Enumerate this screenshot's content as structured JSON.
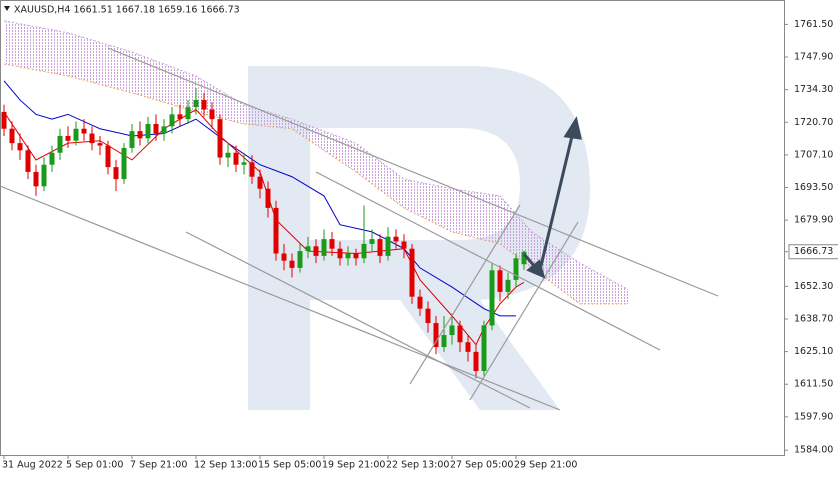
{
  "chart_data": {
    "type": "candlestick",
    "title": "XAUUSD,H4  1661.51 1667.18 1659.16 1666.73",
    "categories": [
      "31 Aug 2022",
      null,
      null,
      null,
      null,
      null,
      null,
      null,
      "5 Sep 01:00",
      null,
      null,
      null,
      null,
      null,
      null,
      null,
      "7 Sep 21:00",
      null,
      null,
      null,
      null,
      null,
      null,
      null,
      "12 Sep 13:00",
      null,
      null,
      null,
      null,
      null,
      null,
      null,
      "15 Sep 05:00",
      null,
      null,
      null,
      null,
      null,
      null,
      null,
      "19 Sep 21:00",
      null,
      null,
      null,
      null,
      null,
      null,
      null,
      "22 Sep 13:00",
      null,
      null,
      null,
      null,
      null,
      null,
      null,
      "27 Sep 05:00",
      null,
      null,
      null,
      null,
      null,
      null,
      null,
      "29 Sep 21:00",
      null
    ],
    "open": [
      1725,
      1718,
      1712,
      1709,
      1700,
      1694,
      1703,
      1708,
      1715,
      1713,
      1718,
      1716,
      1712,
      1711,
      1702,
      1697,
      1710,
      1717,
      1714,
      1720,
      1716,
      1719,
      1724,
      1722,
      1727,
      1730,
      1726,
      1722,
      1706,
      1708,
      1703,
      1704,
      1698,
      1693,
      1685,
      1666,
      1663,
      1660,
      1667,
      1669,
      1665,
      1672,
      1668,
      1664,
      1666,
      1664,
      1670,
      1672,
      1665,
      1673,
      1671,
      1668,
      1648,
      1643,
      1637,
      1627,
      1632,
      1636,
      1629,
      1625,
      1617,
      1636,
      1659,
      1650,
      1655,
      1661.51
    ],
    "high": [
      1728,
      1721,
      1716,
      1711,
      1703,
      1706,
      1711,
      1718,
      1719,
      1721,
      1722,
      1719,
      1715,
      1713,
      1705,
      1712,
      1720,
      1721,
      1723,
      1724,
      1722,
      1727,
      1728,
      1730,
      1735,
      1733,
      1729,
      1724,
      1712,
      1711,
      1708,
      1707,
      1701,
      1696,
      1688,
      1670,
      1666,
      1670,
      1673,
      1672,
      1676,
      1675,
      1671,
      1669,
      1668,
      1686,
      1676,
      1674,
      1677,
      1676,
      1674,
      1670,
      1651,
      1646,
      1640,
      1640,
      1641,
      1638,
      1632,
      1628,
      1638,
      1662,
      1661,
      1658,
      1666,
      1667.18
    ],
    "low": [
      1715,
      1709,
      1705,
      1697,
      1690,
      1692,
      1700,
      1705,
      1710,
      1711,
      1713,
      1709,
      1707,
      1699,
      1692,
      1695,
      1708,
      1711,
      1712,
      1713,
      1713,
      1716,
      1719,
      1720,
      1724,
      1723,
      1718,
      1703,
      1702,
      1700,
      1699,
      1695,
      1689,
      1681,
      1663,
      1659,
      1656,
      1658,
      1664,
      1662,
      1663,
      1665,
      1661,
      1661,
      1661,
      1662,
      1667,
      1662,
      1663,
      1668,
      1664,
      1645,
      1640,
      1633,
      1624,
      1625,
      1628,
      1625,
      1621,
      1614,
      1615,
      1634,
      1646,
      1647,
      1652,
      1659.16
    ],
    "close": [
      1718,
      1712,
      1709,
      1700,
      1694,
      1703,
      1708,
      1715,
      1713,
      1718,
      1716,
      1712,
      1711,
      1702,
      1697,
      1710,
      1717,
      1714,
      1720,
      1716,
      1719,
      1724,
      1722,
      1727,
      1730,
      1726,
      1722,
      1706,
      1708,
      1703,
      1704,
      1698,
      1693,
      1685,
      1666,
      1663,
      1660,
      1667,
      1669,
      1665,
      1672,
      1668,
      1664,
      1666,
      1664,
      1670,
      1672,
      1665,
      1673,
      1671,
      1668,
      1648,
      1643,
      1637,
      1627,
      1632,
      1636,
      1629,
      1625,
      1617,
      1636,
      1659,
      1650,
      1655,
      1664,
      1666.73
    ],
    "up_color": "#1a9a1a",
    "down_color": "#e00000",
    "lines": [
      {
        "color": "#0000cc",
        "x": [
          0,
          2,
          4,
          6,
          8,
          12,
          16,
          20,
          24,
          28,
          32,
          36,
          40,
          42,
          46,
          50,
          52,
          56,
          60,
          62,
          64
        ],
        "values": [
          1738,
          1730,
          1724,
          1722,
          1724,
          1718,
          1715,
          1716,
          1722,
          1712,
          1703,
          1698,
          1690,
          1678,
          1675,
          1668,
          1660,
          1652,
          1643,
          1640,
          1640
        ]
      },
      {
        "color": "#dd0000",
        "x": [
          0,
          4,
          8,
          12,
          16,
          20,
          24,
          27,
          32,
          34,
          38,
          44,
          50,
          52,
          56,
          59,
          60,
          62,
          64,
          65
        ],
        "values": [
          1725,
          1705,
          1712,
          1713,
          1705,
          1718,
          1726,
          1715,
          1700,
          1680,
          1667,
          1666,
          1668,
          1655,
          1640,
          1628,
          1635,
          1645,
          1652,
          1654
        ]
      }
    ],
    "cloud": {
      "color": "#c9a0dc",
      "x": [
        0,
        8,
        16,
        24,
        30,
        36,
        44,
        50,
        56,
        62,
        66,
        72,
        78
      ],
      "upper": [
        1763,
        1758,
        1750,
        1740,
        1728,
        1722,
        1712,
        1697,
        1693,
        1690,
        1675,
        1662,
        1651
      ],
      "lower": [
        1745,
        1740,
        1733,
        1725,
        1720,
        1718,
        1700,
        1685,
        1675,
        1670,
        1660,
        1645,
        1645
      ]
    },
    "ylim": [
      1582,
      1770
    ],
    "yticks": [
      {
        "value": 1584,
        "label": "1584.00"
      },
      {
        "value": 1597.9,
        "label": "1597.90"
      },
      {
        "value": 1611.5,
        "label": "1611.50"
      },
      {
        "value": 1625.1,
        "label": "1625.10"
      },
      {
        "value": 1638.7,
        "label": "1638.70"
      },
      {
        "value": 1652.3,
        "label": "1652.30"
      },
      {
        "value": 1666.73,
        "label": "1666.73"
      },
      {
        "value": 1679.9,
        "label": "1679.90"
      },
      {
        "value": 1693.5,
        "label": "1693.50"
      },
      {
        "value": 1707.1,
        "label": "1707.10"
      },
      {
        "value": 1720.7,
        "label": "1720.70"
      },
      {
        "value": 1734.3,
        "label": "1734.30"
      },
      {
        "value": 1747.9,
        "label": "1747.90"
      },
      {
        "value": 1761.5,
        "label": "1761.50"
      }
    ]
  }
}
